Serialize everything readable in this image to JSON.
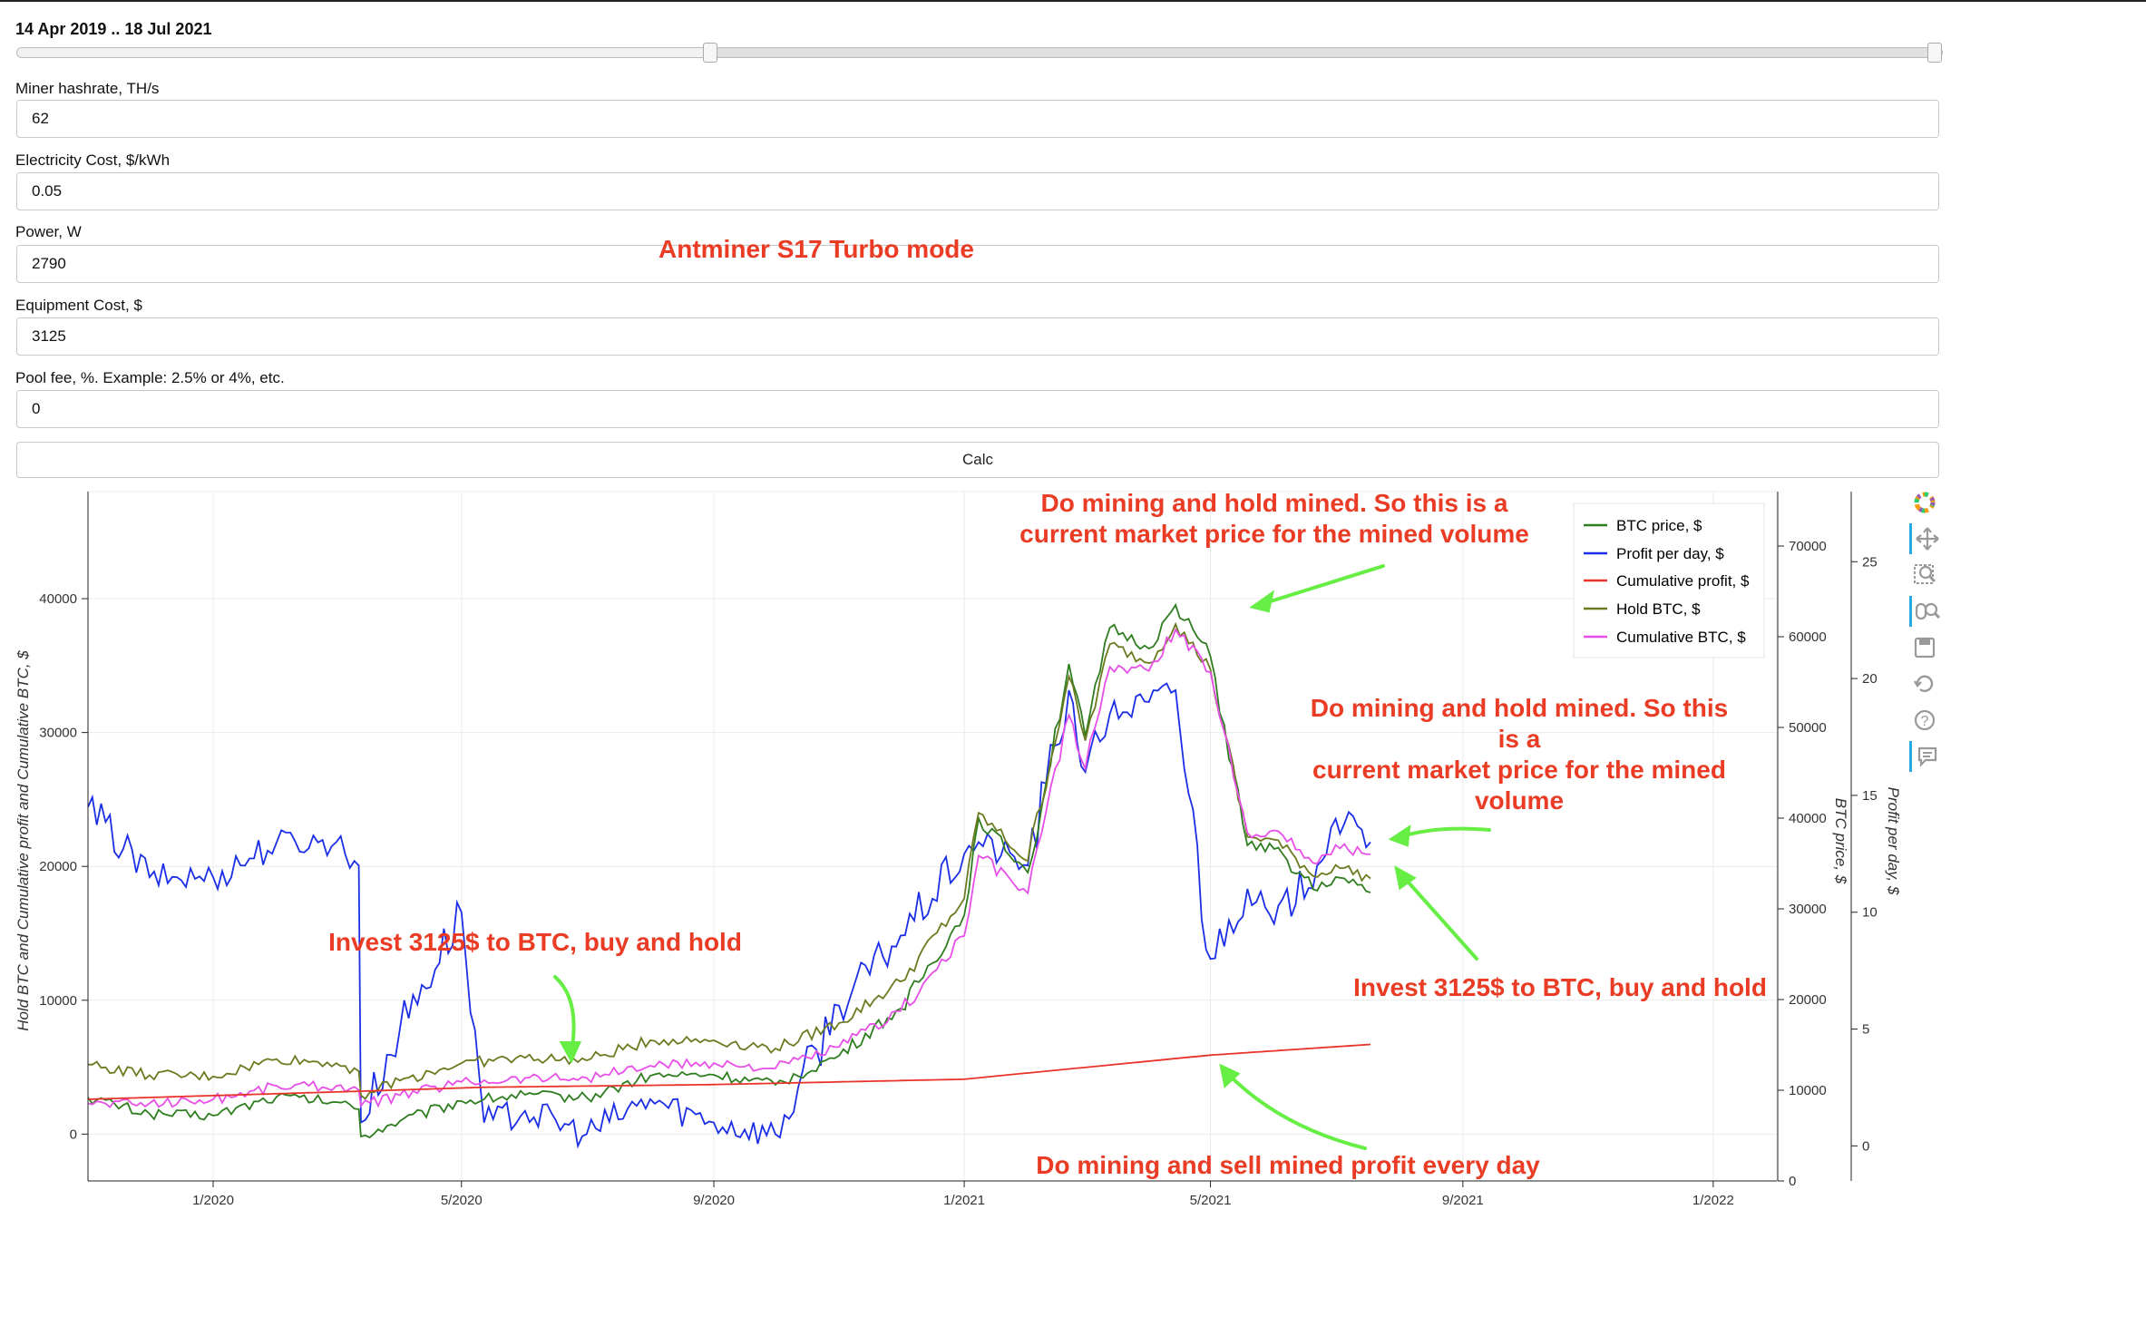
{
  "range": {
    "label": "14 Apr 2019 .. 18 Jul 2021",
    "start_fraction": 0.36,
    "end_fraction": 1.0
  },
  "fields": [
    {
      "label": "Miner hashrate, TH/s",
      "value": "62"
    },
    {
      "label": "Electricity Cost, $/kWh",
      "value": "0.05"
    },
    {
      "label": "Power, W",
      "value": "2790"
    },
    {
      "label": "Equipment Cost, $",
      "value": "3125"
    },
    {
      "label": "Pool fee, %. Example: 2.5% or 4%, etc.",
      "value": "0"
    }
  ],
  "calc_label": "Calc",
  "annotations": {
    "miner_model": "Antminer S17 Turbo mode",
    "top_line1": "Do mining and hold mined. So this is a",
    "top_line2": "current market price for the mined volume",
    "right_line1": "Do mining and hold mined. So this",
    "right_line2": "is a",
    "right_line3": "current market price for the mined",
    "right_line4": "volume",
    "invest_left": "Invest 3125$ to BTC, buy and hold",
    "invest_right": "Invest 3125$ to BTC, buy and hold",
    "sell_profit": "Do mining and sell mined profit every day"
  },
  "colors": {
    "btc_price": "#2e7d1f",
    "profit_per_day": "#1a2ee6",
    "cumulative_profit": "#e8342a",
    "hold_btc": "#6b7a1f",
    "cumulative_btc": "#e84ee8",
    "annotation_red": "#ea3b24",
    "arrow_green": "#66ee44"
  },
  "toolbar": [
    "bokeh-logo-icon",
    "pan-icon",
    "box-zoom-icon",
    "wheel-zoom-icon",
    "save-icon",
    "reset-icon",
    "help-icon",
    "hover-icon"
  ],
  "chart_data": {
    "type": "line",
    "x_tick_labels": [
      "1/2020",
      "5/2020",
      "9/2020",
      "1/2021",
      "5/2021",
      "9/2021",
      "1/2022"
    ],
    "x_range": [
      "2019-11-01",
      "2022-02-01"
    ],
    "y_left": {
      "label": "Hold BTC and Cumulative profit and Cumulative BTC, $",
      "range": [
        -3500,
        48000
      ],
      "ticks": [
        0,
        10000,
        20000,
        30000,
        40000
      ]
    },
    "y_btc_price": {
      "label": "BTC price, $",
      "range": [
        0,
        76000
      ],
      "ticks": [
        0,
        10000,
        20000,
        30000,
        40000,
        50000,
        60000,
        70000
      ]
    },
    "y_profit_per_day": {
      "label": "Profit per day, $",
      "range": [
        -1.5,
        28
      ],
      "ticks": [
        0,
        5,
        10,
        15,
        20,
        25
      ]
    },
    "legend_position": "top-right",
    "series": [
      {
        "name": "BTC price, $",
        "axis": "y_btc_price",
        "x": [
          "2019-11-01",
          "2019-12-01",
          "2020-01-01",
          "2020-02-01",
          "2020-03-01",
          "2020-03-12",
          "2020-03-13",
          "2020-04-01",
          "2020-05-01",
          "2020-06-01",
          "2020-07-01",
          "2020-08-01",
          "2020-09-01",
          "2020-10-01",
          "2020-11-01",
          "2020-12-01",
          "2021-01-01",
          "2021-01-08",
          "2021-02-01",
          "2021-02-21",
          "2021-03-01",
          "2021-03-13",
          "2021-04-01",
          "2021-04-14",
          "2021-05-01",
          "2021-05-19",
          "2021-06-01",
          "2021-06-22",
          "2021-07-01",
          "2021-07-18"
        ],
        "y": [
          9200,
          7400,
          7200,
          9300,
          8700,
          7900,
          4900,
          6600,
          8800,
          9500,
          9200,
          11600,
          11700,
          10600,
          13800,
          19000,
          29300,
          40000,
          34000,
          57000,
          49000,
          61000,
          58700,
          63500,
          57800,
          37000,
          36600,
          32000,
          33500,
          31800
        ]
      },
      {
        "name": "Profit per day, $",
        "axis": "y_profit_per_day",
        "x": [
          "2019-11-01",
          "2019-12-01",
          "2020-01-01",
          "2020-02-01",
          "2020-03-01",
          "2020-03-12",
          "2020-03-13",
          "2020-04-01",
          "2020-05-01",
          "2020-05-12",
          "2020-06-01",
          "2020-07-01",
          "2020-08-01",
          "2020-09-01",
          "2020-10-01",
          "2020-11-01",
          "2020-12-01",
          "2021-01-01",
          "2021-01-08",
          "2021-02-01",
          "2021-02-21",
          "2021-03-01",
          "2021-03-13",
          "2021-04-01",
          "2021-04-14",
          "2021-05-01",
          "2021-05-19",
          "2021-06-01",
          "2021-06-22",
          "2021-07-01",
          "2021-07-18"
        ],
        "y": [
          14.5,
          11.5,
          11.5,
          13,
          13,
          12,
          1,
          5,
          10,
          1,
          1.5,
          0.5,
          2,
          1,
          0.5,
          6,
          9,
          12.5,
          13,
          12,
          19.5,
          16,
          18.5,
          19,
          19.5,
          8,
          11,
          9.5,
          12,
          14,
          13
        ]
      },
      {
        "name": "Cumulative profit, $",
        "axis": "y_left",
        "x": [
          "2019-11-01",
          "2020-03-12",
          "2020-05-12",
          "2020-09-01",
          "2021-01-01",
          "2021-05-01",
          "2021-07-18"
        ],
        "y": [
          2600,
          3200,
          3500,
          3700,
          4100,
          5900,
          6700
        ]
      },
      {
        "name": "Hold BTC, $",
        "axis": "y_left",
        "x": [
          "2019-11-01",
          "2019-12-01",
          "2020-01-01",
          "2020-02-01",
          "2020-03-01",
          "2020-03-12",
          "2020-03-13",
          "2020-04-01",
          "2020-05-01",
          "2020-06-01",
          "2020-07-01",
          "2020-08-01",
          "2020-09-01",
          "2020-10-01",
          "2020-11-01",
          "2020-12-01",
          "2021-01-01",
          "2021-01-08",
          "2021-02-01",
          "2021-02-21",
          "2021-03-01",
          "2021-03-13",
          "2021-04-01",
          "2021-04-14",
          "2021-05-01",
          "2021-05-19",
          "2021-06-01",
          "2021-06-22",
          "2021-07-01",
          "2021-07-18"
        ],
        "y": [
          5200,
          4400,
          4300,
          5600,
          5300,
          4700,
          2900,
          4000,
          5300,
          5700,
          5500,
          7000,
          7000,
          6400,
          8300,
          11400,
          17600,
          24000,
          20400,
          34200,
          29400,
          36600,
          35200,
          38100,
          34700,
          22200,
          22000,
          19200,
          20100,
          19100
        ]
      },
      {
        "name": "Cumulative BTC, $",
        "axis": "y_left",
        "x": [
          "2019-11-01",
          "2019-12-01",
          "2020-01-01",
          "2020-02-01",
          "2020-03-01",
          "2020-03-12",
          "2020-03-13",
          "2020-04-01",
          "2020-05-01",
          "2020-06-01",
          "2020-07-01",
          "2020-08-01",
          "2020-09-01",
          "2020-10-01",
          "2020-11-01",
          "2020-12-01",
          "2021-01-01",
          "2021-01-08",
          "2021-02-01",
          "2021-02-21",
          "2021-03-01",
          "2021-03-13",
          "2021-04-01",
          "2021-04-14",
          "2021-05-01",
          "2021-05-19",
          "2021-06-01",
          "2021-06-22",
          "2021-07-01",
          "2021-07-18"
        ],
        "y": [
          2300,
          2300,
          2600,
          3600,
          3600,
          3300,
          2100,
          2900,
          3900,
          4200,
          4200,
          5100,
          5300,
          4900,
          6500,
          9200,
          14800,
          20800,
          18000,
          31300,
          27300,
          34900,
          34600,
          37700,
          34500,
          22500,
          22700,
          20200,
          21600,
          20900
        ]
      }
    ]
  }
}
